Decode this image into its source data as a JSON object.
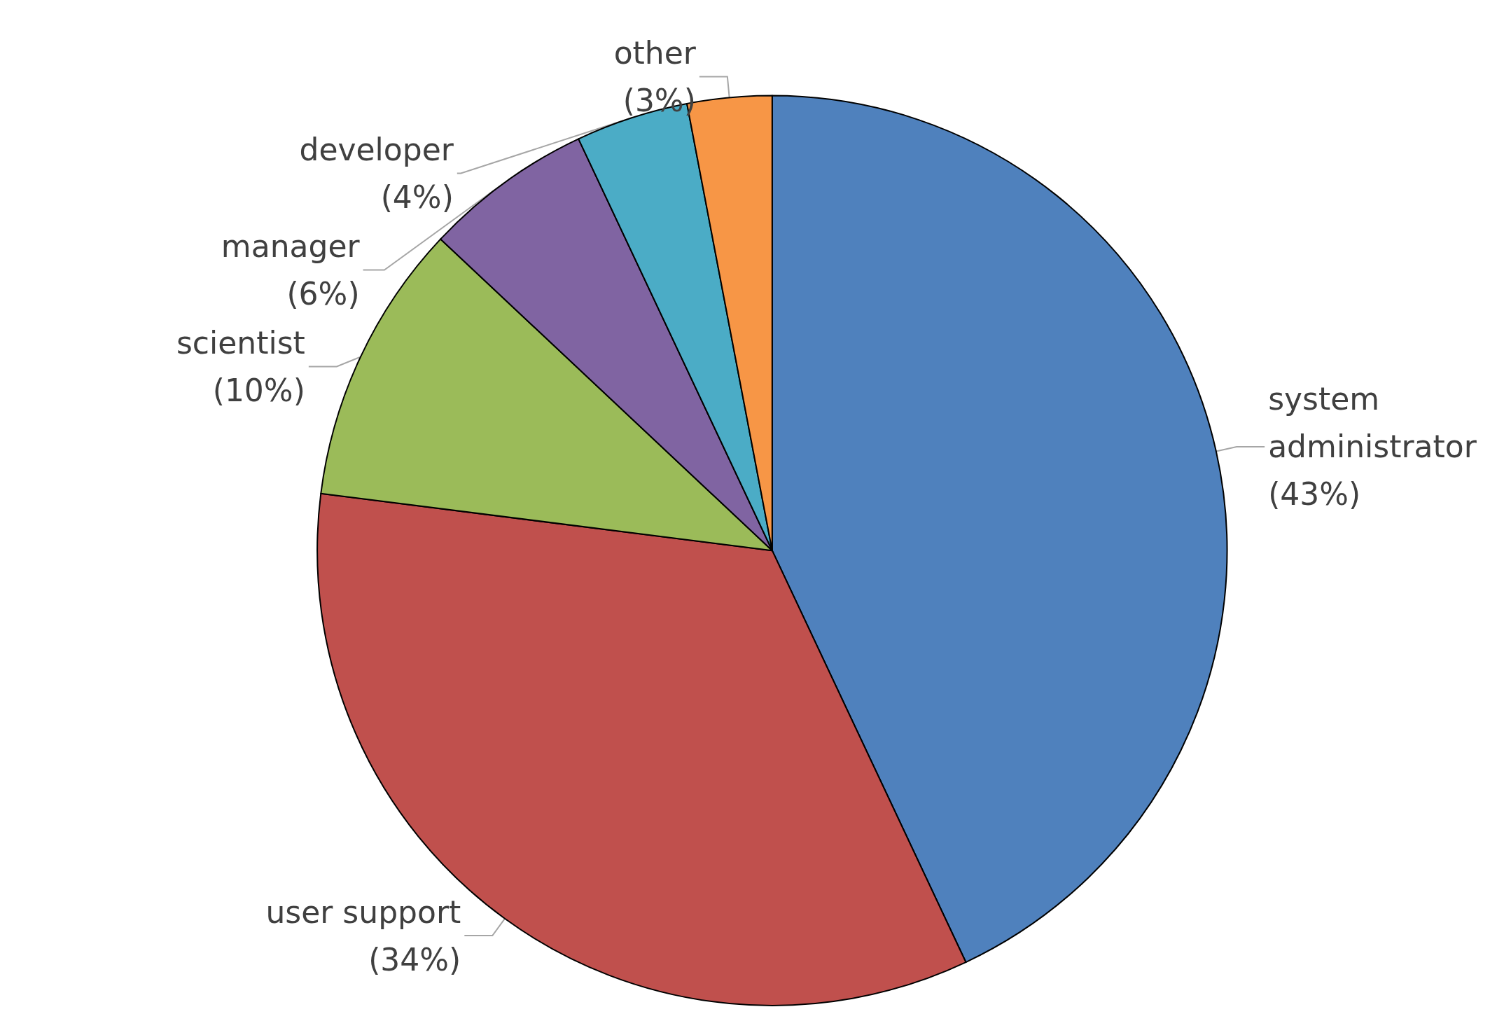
{
  "chart_data": {
    "type": "pie",
    "categories": [
      "system administrator",
      "user support",
      "scientist",
      "manager",
      "developer",
      "other"
    ],
    "values": [
      43,
      34,
      10,
      6,
      4,
      3
    ],
    "value_labels": [
      "(43%)",
      "(34%)",
      "(10%)",
      "(6%)",
      "(4%)",
      "(3%)"
    ],
    "colors": [
      "#4f81bd",
      "#c0504d",
      "#9bbb59",
      "#8064a2",
      "#4bacc6",
      "#f79646"
    ],
    "legend": false
  }
}
